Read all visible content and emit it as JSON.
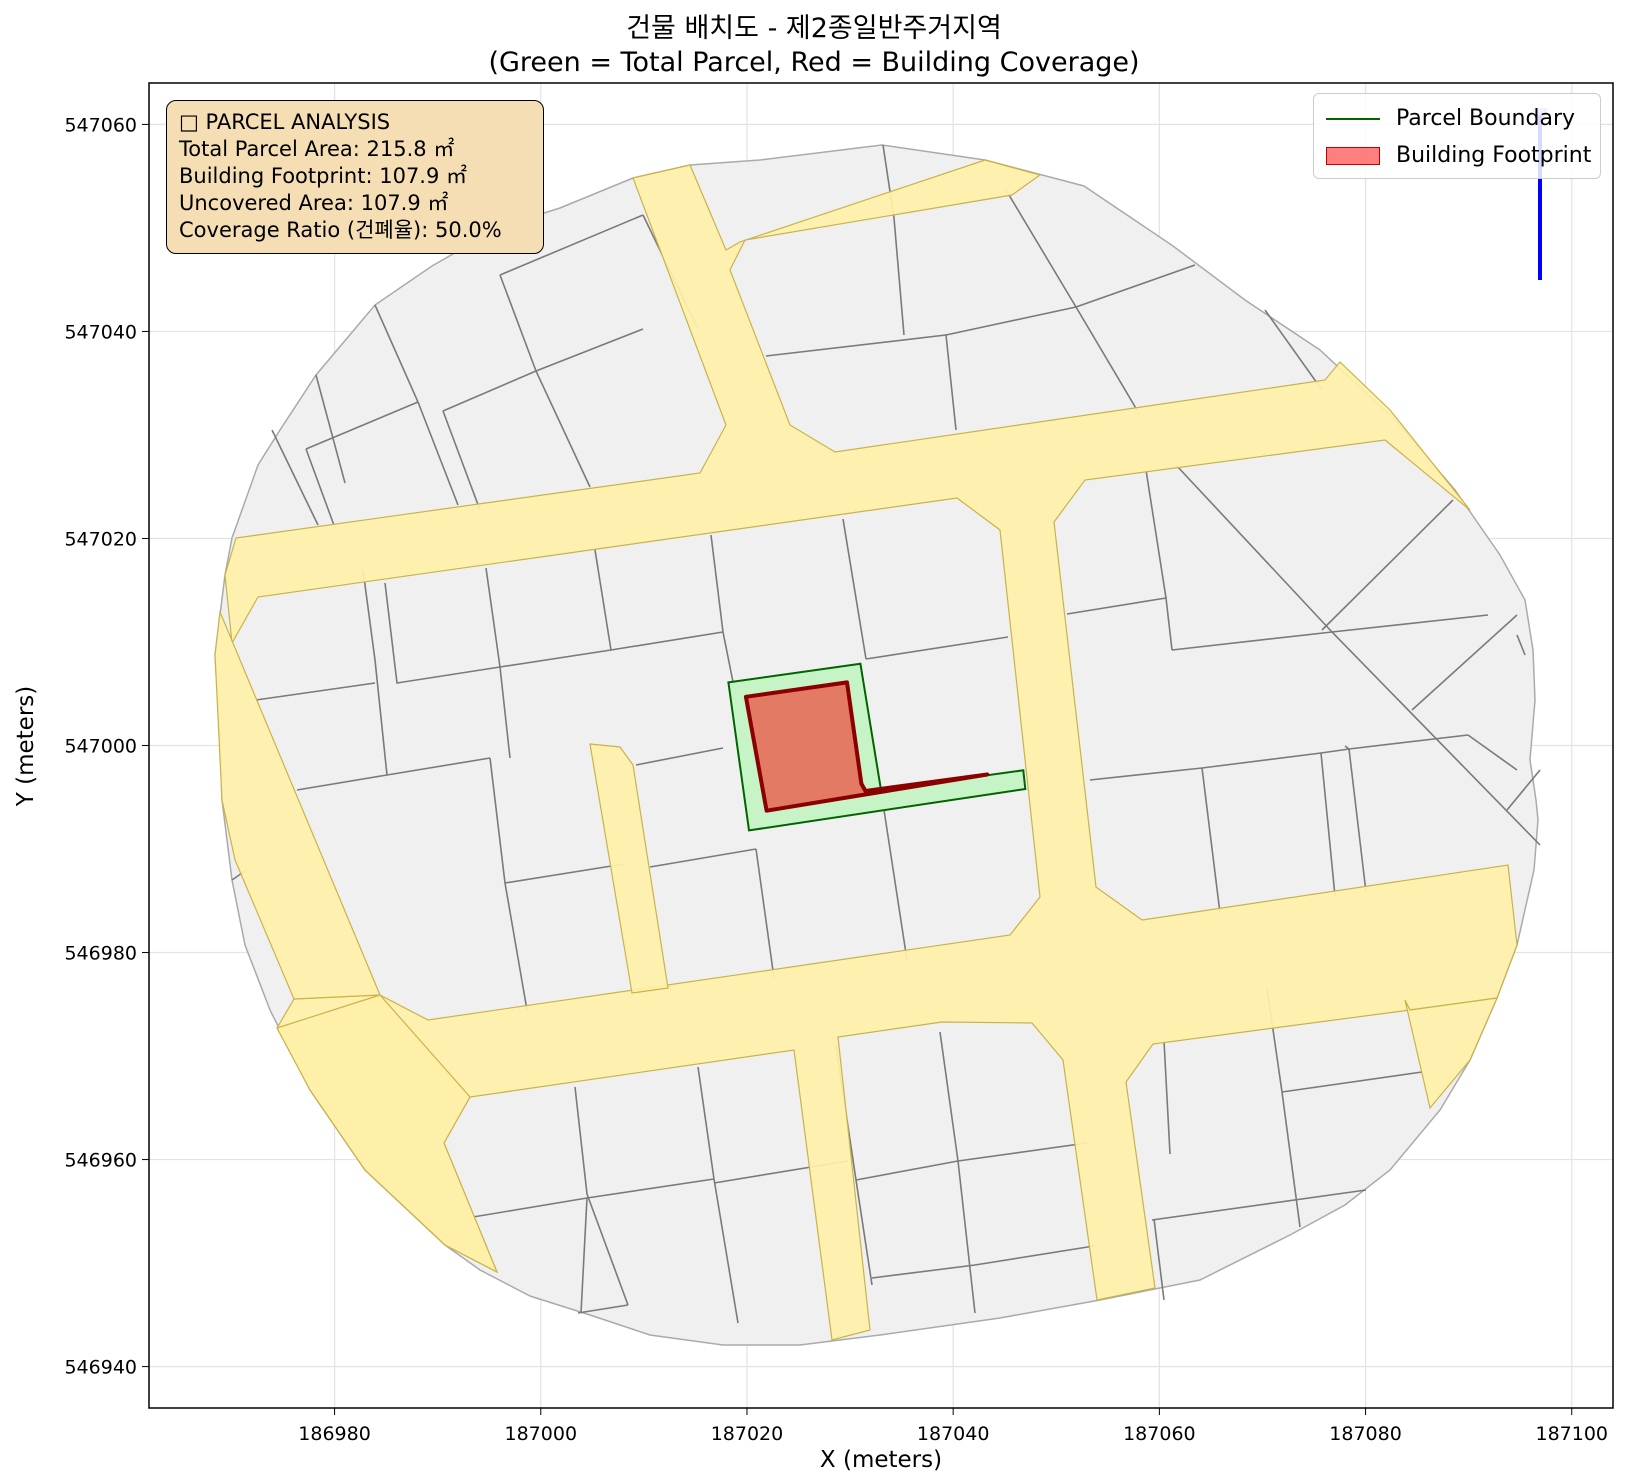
{
  "title": {
    "line1": "건물 배치도 - 제2종일반주거지역",
    "line2": "(Green = Total Parcel, Red = Building Coverage)"
  },
  "axes": {
    "xlabel": "X (meters)",
    "ylabel": "Y (meters)",
    "xlim": [
      186962,
      187104
    ],
    "ylim": [
      546936,
      547064
    ],
    "xticks": [
      186980,
      187000,
      187020,
      187040,
      187060,
      187080,
      187100
    ],
    "yticks": [
      546940,
      546960,
      546980,
      547000,
      547020,
      547040,
      547060
    ],
    "grid": true
  },
  "info_box": {
    "header": "□ PARCEL ANALYSIS",
    "total_area": "Total Parcel Area: 215.8 ㎡",
    "footprint": "Building Footprint: 107.9 ㎡",
    "uncovered": "Uncovered Area: 107.9 ㎡",
    "coverage": "Coverage Ratio (건폐율): 50.0%"
  },
  "legend": {
    "placement": "top-right",
    "items": [
      "Parcel Boundary",
      "Building Footprint"
    ]
  },
  "colors": {
    "parcel_fill": "#c6f4c6",
    "parcel_edge": "#006400",
    "building_fill": "#e27a64",
    "building_edge": "#8b0000",
    "road_fill": "#fff0a8",
    "road_edge": "#c9b34a",
    "block_fill": "#f0f0f0",
    "block_edge": "#777777",
    "north_arrow": "#0000ff"
  },
  "map_data": {
    "target_parcel": [
      [
        187018.2,
        547006.1
      ],
      [
        187031.0,
        547007.9
      ],
      [
        187033.0,
        546995.7
      ],
      [
        187046.8,
        546997.6
      ],
      [
        187047.0,
        546995.8
      ],
      [
        187020.2,
        546991.8
      ]
    ],
    "building_footprint": [
      [
        187019.9,
        547004.7
      ],
      [
        187029.7,
        547006.1
      ],
      [
        187031.1,
        546996.3
      ],
      [
        187031.5,
        546995.6
      ],
      [
        187043.3,
        546997.2
      ],
      [
        187021.9,
        546993.7
      ]
    ]
  }
}
